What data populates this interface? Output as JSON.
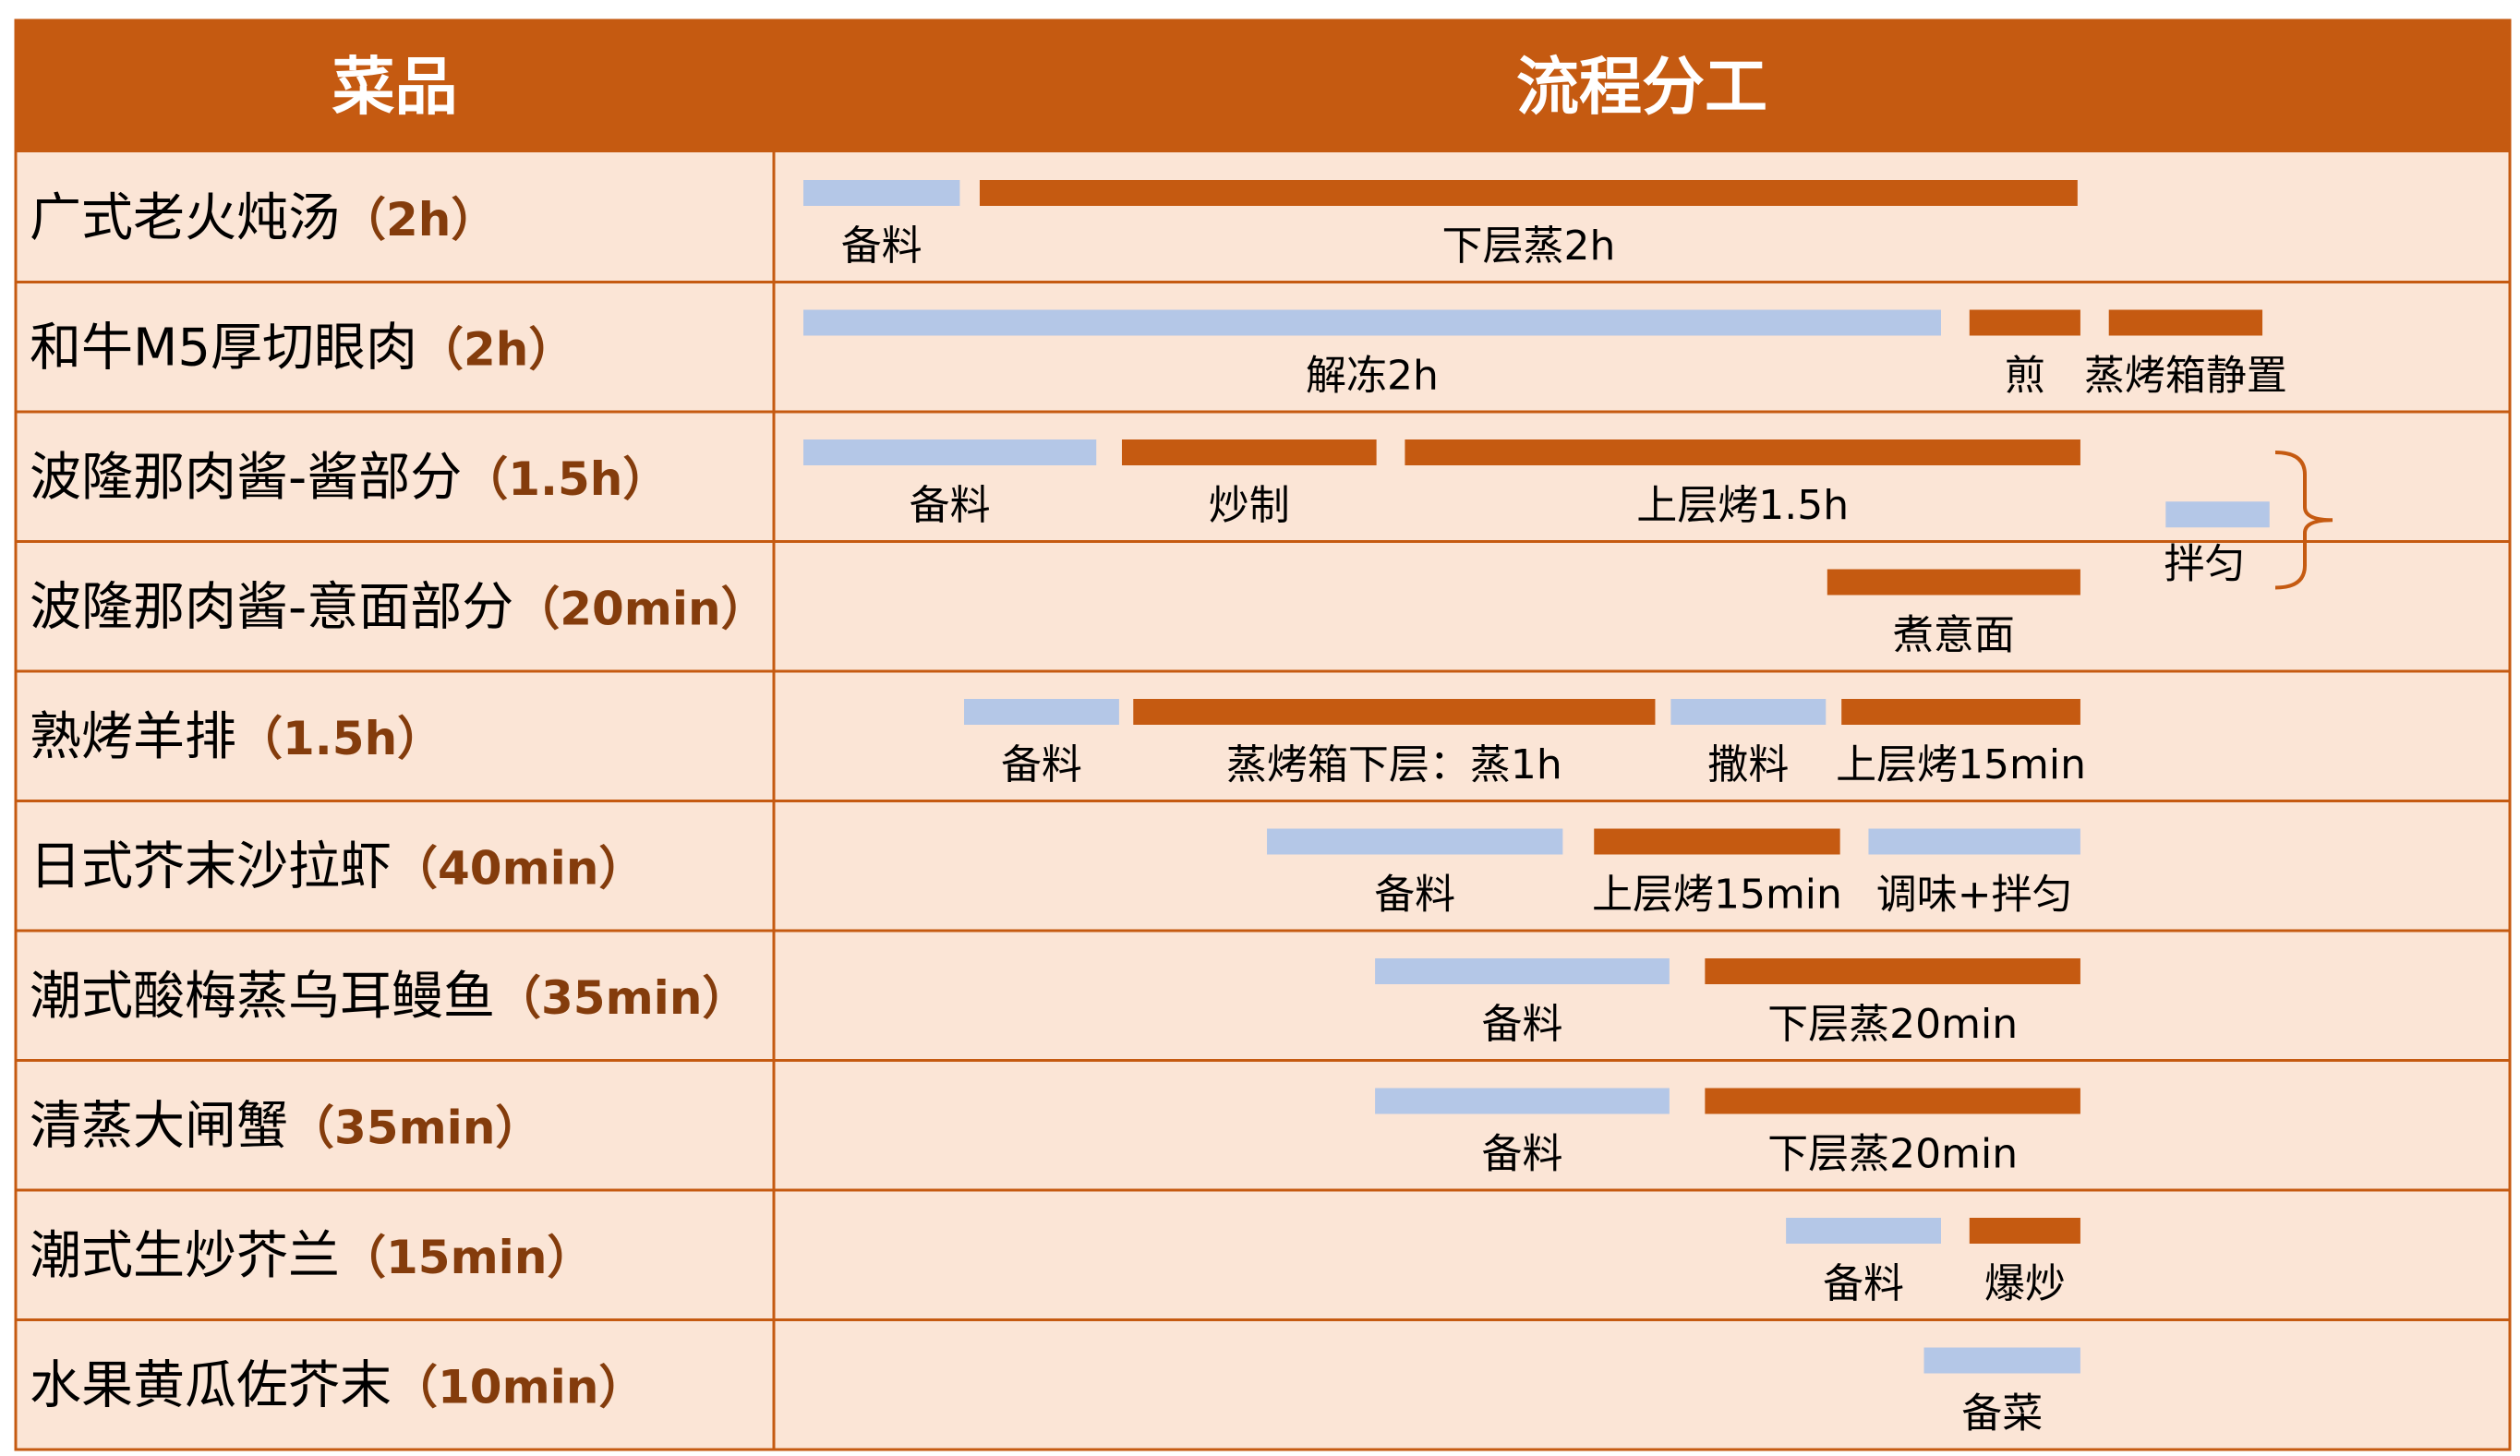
{
  "header": {
    "dish_col": "菜品",
    "process_col": "流程分工"
  },
  "colors": {
    "header_bg": "#C55A11",
    "row_bg": "#FBE5D6",
    "grid": "#C55A11",
    "prep_bar": "#B4C7E7",
    "cook_bar": "#C55A11",
    "header_text": "#FFFFFF",
    "name_text": "#000000",
    "duration_text": "#843C0C",
    "label_text": "#000000"
  },
  "rows": [
    {
      "name": "广式老火炖汤",
      "duration": "（2h）",
      "tasks": [
        {
          "label": "备料",
          "kind": "prep",
          "start": 0,
          "end": 11
        },
        {
          "label": "下层蒸2h",
          "kind": "cook",
          "start": 12.4,
          "end": 89.6
        }
      ]
    },
    {
      "name": "和牛M5厚切眼肉",
      "duration": "（2h）",
      "tasks": [
        {
          "label": "解冻2h",
          "kind": "prep",
          "start": 0,
          "end": 80
        },
        {
          "label": "煎",
          "kind": "cook",
          "start": 82,
          "end": 89.8
        },
        {
          "label": "蒸烤箱静置",
          "kind": "cook",
          "start": 91.8,
          "end": 102.6
        }
      ]
    },
    {
      "name": "波隆那肉酱-酱部分",
      "duration": "（1.5h）",
      "tasks": [
        {
          "label": "备料",
          "kind": "prep",
          "start": 0,
          "end": 20.6
        },
        {
          "label": "炒制",
          "kind": "cook",
          "start": 22.4,
          "end": 40.3
        },
        {
          "label": "上层烤1.5h",
          "kind": "cook",
          "start": 42.3,
          "end": 89.8
        }
      ]
    },
    {
      "name": "波隆那肉酱-意面部分",
      "duration": "（20min）",
      "tasks": [
        {
          "label": "煮意面",
          "kind": "cook",
          "start": 72,
          "end": 89.8
        }
      ]
    },
    {
      "name": "熟烤羊排",
      "duration": "（1.5h）",
      "tasks": [
        {
          "label": "备料",
          "kind": "prep",
          "start": 11.3,
          "end": 22.2
        },
        {
          "label": "蒸烤箱下层：蒸1h",
          "kind": "cook",
          "start": 23.2,
          "end": 59.9
        },
        {
          "label": "撒料",
          "kind": "prep",
          "start": 61.0,
          "end": 71.9
        },
        {
          "label": "上层烤15min",
          "kind": "cook",
          "start": 73.0,
          "end": 89.8
        }
      ]
    },
    {
      "name": "日式芥末沙拉虾",
      "duration": "（40min）",
      "tasks": [
        {
          "label": "备料",
          "kind": "prep",
          "start": 32.6,
          "end": 53.4
        },
        {
          "label": "上层烤15min",
          "kind": "cook",
          "start": 55.6,
          "end": 72.9
        },
        {
          "label": "调味+拌匀",
          "kind": "prep",
          "start": 74.9,
          "end": 89.8
        }
      ]
    },
    {
      "name": "潮式酸梅蒸乌耳鳗鱼",
      "duration": "（35min）",
      "tasks": [
        {
          "label": "备料",
          "kind": "prep",
          "start": 40.2,
          "end": 60.9
        },
        {
          "label": "下层蒸20min",
          "kind": "cook",
          "start": 63.4,
          "end": 89.8
        }
      ]
    },
    {
      "name": "清蒸大闸蟹",
      "duration": "（35min）",
      "tasks": [
        {
          "label": "备料",
          "kind": "prep",
          "start": 40.2,
          "end": 60.9
        },
        {
          "label": "下层蒸20min",
          "kind": "cook",
          "start": 63.4,
          "end": 89.8
        }
      ]
    },
    {
      "name": "潮式生炒芥兰",
      "duration": "（15min）",
      "tasks": [
        {
          "label": "备料",
          "kind": "prep",
          "start": 69.1,
          "end": 80
        },
        {
          "label": "爆炒",
          "kind": "cook",
          "start": 82,
          "end": 89.8
        }
      ]
    },
    {
      "name": "水果黄瓜佐芥末",
      "duration": "（10min）",
      "tasks": [
        {
          "label": "备菜",
          "kind": "prep",
          "start": 78.8,
          "end": 89.8
        }
      ]
    }
  ],
  "merge": {
    "label": "拌匀",
    "kind": "prep",
    "start": 95.8,
    "end": 103.1,
    "rows": [
      2,
      3
    ]
  }
}
